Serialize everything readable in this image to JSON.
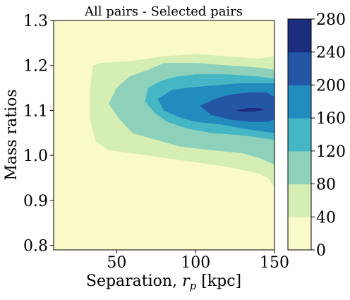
{
  "chart_data": {
    "type": "heatmap",
    "subtype": "filled-contour",
    "title": "All pairs - Selected pairs",
    "xlabel": "Separation, ",
    "xlabel_symbol": "r",
    "xlabel_subscript": "p",
    "xlabel_unit": " [kpc]",
    "ylabel": "Mass ratios",
    "xlim": [
      10,
      150
    ],
    "ylim": [
      0.79,
      1.3
    ],
    "x_ticks": [
      50,
      100,
      150
    ],
    "x_tick_labels": [
      "50",
      "100",
      "150"
    ],
    "y_ticks": [
      0.8,
      0.9,
      1.0,
      1.1,
      1.2,
      1.3
    ],
    "y_tick_labels": [
      "0.8",
      "0.9",
      "1.0",
      "1.1",
      "1.2",
      "1.3"
    ],
    "colorbar": {
      "levels": [
        0,
        40,
        80,
        120,
        160,
        200,
        240,
        280
      ],
      "tick_labels": [
        "0",
        "40",
        "80",
        "120",
        "160",
        "200",
        "240",
        "280"
      ],
      "colors": [
        "#fafac8",
        "#d5eeb4",
        "#8dd1bb",
        "#45b6c4",
        "#218cbd",
        "#2357a6",
        "#1c2d80"
      ]
    },
    "contour_regions": [
      {
        "level_min": 40,
        "level_max": 80,
        "color": "#d5eeb4",
        "points": [
          [
            35,
            1.2
          ],
          [
            40,
            1.205
          ],
          [
            60,
            1.21
          ],
          [
            80,
            1.22
          ],
          [
            100,
            1.225
          ],
          [
            120,
            1.22
          ],
          [
            140,
            1.215
          ],
          [
            150,
            1.22
          ],
          [
            150,
            0.93
          ],
          [
            146,
            0.95
          ],
          [
            140,
            0.96
          ],
          [
            120,
            0.975
          ],
          [
            100,
            0.985
          ],
          [
            80,
            0.995
          ],
          [
            60,
            1.005
          ],
          [
            45,
            1.012
          ],
          [
            37,
            1.03
          ],
          [
            33,
            1.08
          ],
          [
            33,
            1.14
          ]
        ]
      },
      {
        "level_min": 80,
        "level_max": 120,
        "color": "#8dd1bb",
        "points": [
          [
            50,
            1.15
          ],
          [
            58,
            1.175
          ],
          [
            70,
            1.19
          ],
          [
            80,
            1.205
          ],
          [
            100,
            1.205
          ],
          [
            120,
            1.2
          ],
          [
            140,
            1.195
          ],
          [
            150,
            1.19
          ],
          [
            150,
            0.98
          ],
          [
            140,
            0.995
          ],
          [
            130,
            1.005
          ],
          [
            110,
            1.012
          ],
          [
            90,
            1.02
          ],
          [
            75,
            1.035
          ],
          [
            60,
            1.05
          ],
          [
            52,
            1.08
          ],
          [
            45,
            1.115
          ]
        ]
      },
      {
        "level_min": 120,
        "level_max": 160,
        "color": "#45b6c4",
        "points": [
          [
            70,
            1.15
          ],
          [
            78,
            1.165
          ],
          [
            88,
            1.175
          ],
          [
            100,
            1.18
          ],
          [
            120,
            1.18
          ],
          [
            140,
            1.175
          ],
          [
            150,
            1.17
          ],
          [
            150,
            1.035
          ],
          [
            140,
            1.04
          ],
          [
            130,
            1.045
          ],
          [
            110,
            1.05
          ],
          [
            95,
            1.06
          ],
          [
            82,
            1.075
          ],
          [
            74,
            1.095
          ],
          [
            68,
            1.12
          ]
        ]
      },
      {
        "level_min": 160,
        "level_max": 200,
        "color": "#218cbd",
        "points": [
          [
            76,
            1.125
          ],
          [
            85,
            1.145
          ],
          [
            95,
            1.15
          ],
          [
            110,
            1.155
          ],
          [
            128,
            1.16
          ],
          [
            140,
            1.16
          ],
          [
            150,
            1.16
          ],
          [
            150,
            1.05
          ],
          [
            140,
            1.055
          ],
          [
            130,
            1.06
          ],
          [
            115,
            1.07
          ],
          [
            100,
            1.075
          ],
          [
            90,
            1.085
          ],
          [
            80,
            1.1
          ]
        ]
      },
      {
        "level_min": 200,
        "level_max": 240,
        "color": "#2357a6",
        "points": [
          [
            103,
            1.11
          ],
          [
            112,
            1.125
          ],
          [
            122,
            1.135
          ],
          [
            135,
            1.14
          ],
          [
            145,
            1.14
          ],
          [
            150,
            1.13
          ],
          [
            150,
            1.08
          ],
          [
            145,
            1.075
          ],
          [
            135,
            1.075
          ],
          [
            122,
            1.08
          ],
          [
            110,
            1.09
          ]
        ]
      },
      {
        "level_min": 240,
        "level_max": 280,
        "color": "#1c2d80",
        "points": [
          [
            126,
            1.1
          ],
          [
            133,
            1.105
          ],
          [
            140,
            1.105
          ],
          [
            144,
            1.102
          ],
          [
            138,
            1.098
          ],
          [
            130,
            1.097
          ]
        ]
      }
    ]
  }
}
